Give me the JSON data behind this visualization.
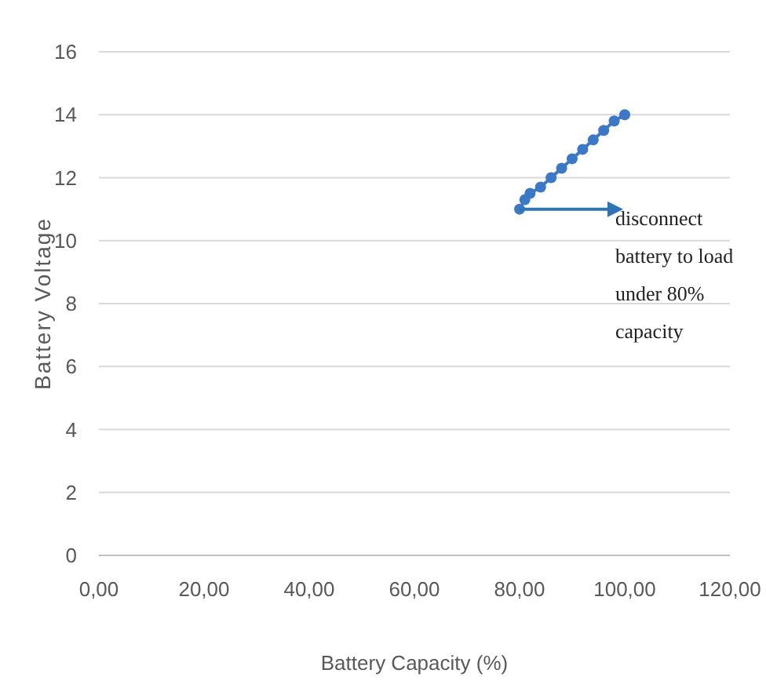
{
  "chart_data": {
    "type": "line",
    "xlabel": "Battery Capacity (%)",
    "ylabel": "Battery Voltage",
    "x": [
      80,
      81,
      82,
      84,
      86,
      88,
      90,
      92,
      94,
      96,
      98,
      100
    ],
    "series": [
      {
        "color": "#3c78c8",
        "values": [
          11.0,
          11.3,
          11.5,
          11.7,
          12.0,
          12.3,
          12.6,
          12.9,
          13.2,
          13.5,
          13.8,
          14.0
        ]
      }
    ],
    "xlim": [
      0,
      120
    ],
    "ylim": [
      0,
      16
    ],
    "xticks": [
      {
        "value": 0,
        "label": "0,00"
      },
      {
        "value": 20,
        "label": "20,00"
      },
      {
        "value": 40,
        "label": "40,00"
      },
      {
        "value": 60,
        "label": "60,00"
      },
      {
        "value": 80,
        "label": "80,00"
      },
      {
        "value": 100,
        "label": "100,00"
      },
      {
        "value": 120,
        "label": "120,00"
      }
    ],
    "yticks": [
      0,
      2,
      4,
      6,
      8,
      10,
      12,
      14,
      16
    ],
    "grid": "y",
    "marker": "circle",
    "line_style": "solid",
    "annotations": [
      {
        "text": "disconnect battery to load under 80% capacity",
        "x": 80,
        "y": 11
      }
    ]
  }
}
